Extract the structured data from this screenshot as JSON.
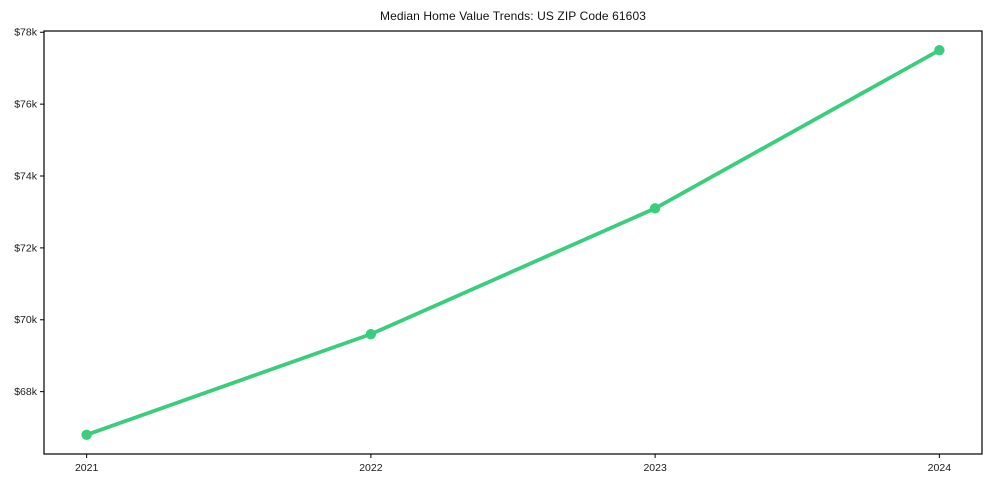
{
  "chart_data": {
    "type": "line",
    "title": "Median Home Value Trends: US ZIP Code 61603",
    "x": [
      2021,
      2022,
      2023,
      2024
    ],
    "values": [
      66800,
      69600,
      73100,
      77500
    ],
    "xtick_labels": [
      "2021",
      "2022",
      "2023",
      "2024"
    ],
    "xticks": [
      2021,
      2022,
      2023,
      2024
    ],
    "ytick_labels": [
      "$68k",
      "$70k",
      "$72k",
      "$74k",
      "$76k",
      "$78k"
    ],
    "yticks": [
      68000,
      70000,
      72000,
      74000,
      76000,
      78000
    ],
    "xlim": [
      2020.85,
      2024.15
    ],
    "ylim": [
      66265,
      78035
    ],
    "xlabel": "",
    "ylabel": "",
    "grid": false,
    "legend": false,
    "line_color": "#3bcd7e",
    "axis_color": "#000000",
    "text_color": "#1a1a1a",
    "marker": "circle"
  }
}
